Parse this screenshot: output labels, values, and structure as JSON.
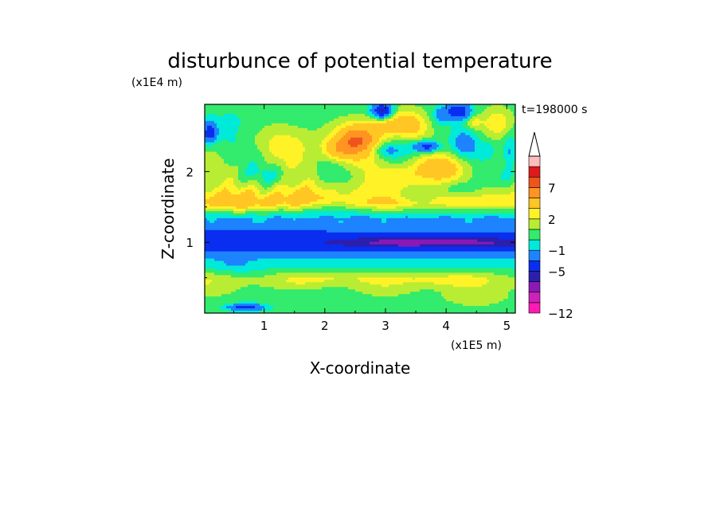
{
  "chart_data": {
    "type": "heatmap",
    "title": "disturbunce of potential temperature",
    "xlabel": "X-coordinate",
    "ylabel": "Z-coordinate",
    "x_unit": "(x1E5 m)",
    "y_unit": "(x1E4 m)",
    "time_label": "t=198000 s",
    "xlim": [
      0.02,
      5.14
    ],
    "ylim": [
      0.0,
      2.95
    ],
    "x_ticks": [
      1,
      2,
      3,
      4,
      5
    ],
    "y_ticks": [
      1,
      2
    ],
    "x_tick_labels": [
      "1",
      "2",
      "3",
      "4",
      "5"
    ],
    "y_tick_labels": [
      "1",
      "2"
    ],
    "colorbar": {
      "levels": [
        -12,
        -10,
        -8,
        -6,
        -5,
        -3,
        -1,
        0,
        1,
        2,
        3,
        5,
        7,
        9,
        11
      ],
      "labels": [
        "-12",
        "-5",
        "-1",
        "2",
        "7"
      ],
      "label_values": [
        -12,
        -5,
        -1,
        2,
        7
      ],
      "colors": [
        "#ff1ab4",
        "#cc22b8",
        "#8a19b5",
        "#2b1fae",
        "#0a2ef0",
        "#1d83ff",
        "#00ead9",
        "#33eb6c",
        "#b8ed34",
        "#fff227",
        "#ffc624",
        "#ff9422",
        "#f0541d",
        "#de1a1a",
        "#ffbcbc"
      ],
      "extend": "max"
    },
    "field": {
      "layers": [
        {
          "z": 0.12,
          "value": 0.5
        },
        {
          "z": 0.45,
          "value": 1.6
        },
        {
          "z": 0.7,
          "value": -0.3
        },
        {
          "z": 1.0,
          "value": -4.7
        },
        {
          "z": 1.3,
          "value": -1.3
        },
        {
          "z": 1.6,
          "value": 2.6
        },
        {
          "z": 2.0,
          "value": 1.0
        },
        {
          "z": 2.6,
          "value": 0.5
        }
      ],
      "features": [
        {
          "x": 3.3,
          "z": 0.99,
          "rx": 1.0,
          "rz": 0.09,
          "amp": -1.8
        },
        {
          "x": 4.6,
          "z": 0.99,
          "rx": 0.7,
          "rz": 0.08,
          "amp": -1.2
        },
        {
          "x": 0.9,
          "z": 1.12,
          "rx": 0.8,
          "rz": 0.08,
          "amp": -0.8
        },
        {
          "x": 2.55,
          "z": 2.45,
          "rx": 0.35,
          "rz": 0.22,
          "amp": 6.0
        },
        {
          "x": 2.2,
          "z": 2.3,
          "rx": 0.25,
          "rz": 0.15,
          "amp": 2.5
        },
        {
          "x": 3.05,
          "z": 2.7,
          "rx": 0.3,
          "rz": 0.2,
          "amp": 3.5
        },
        {
          "x": 3.45,
          "z": 2.65,
          "rx": 0.25,
          "rz": 0.2,
          "amp": 2.8
        },
        {
          "x": 3.9,
          "z": 2.05,
          "rx": 0.5,
          "rz": 0.18,
          "amp": 2.5
        },
        {
          "x": 3.3,
          "z": 1.95,
          "rx": 0.4,
          "rz": 0.15,
          "amp": 2.0
        },
        {
          "x": 0.6,
          "z": 1.55,
          "rx": 0.8,
          "rz": 0.14,
          "amp": 1.6
        },
        {
          "x": 1.6,
          "z": 1.62,
          "rx": 0.35,
          "rz": 0.14,
          "amp": 1.2
        },
        {
          "x": 3.0,
          "z": 1.55,
          "rx": 0.5,
          "rz": 0.08,
          "amp": 0.9
        },
        {
          "x": 4.8,
          "z": 1.55,
          "rx": 0.3,
          "rz": 0.1,
          "amp": 0.6
        },
        {
          "x": 4.2,
          "z": 1.75,
          "rx": 0.35,
          "rz": 0.12,
          "amp": -2.2
        },
        {
          "x": 3.5,
          "z": 1.65,
          "rx": 0.3,
          "rz": 0.1,
          "amp": -1.2
        },
        {
          "x": 2.0,
          "z": 1.5,
          "rx": 0.4,
          "rz": 0.1,
          "amp": -1.0
        },
        {
          "x": 4.3,
          "z": 2.4,
          "rx": 0.2,
          "rz": 0.18,
          "amp": -2.2
        },
        {
          "x": 3.0,
          "z": 2.3,
          "rx": 0.25,
          "rz": 0.1,
          "amp": -2.0
        },
        {
          "x": 2.95,
          "z": 2.85,
          "rx": 0.18,
          "rz": 0.12,
          "amp": -7.5
        },
        {
          "x": 3.5,
          "z": 2.35,
          "rx": 0.25,
          "rz": 0.12,
          "amp": -1.2
        },
        {
          "x": 5.0,
          "z": 1.9,
          "rx": 0.2,
          "rz": 0.2,
          "amp": -1.5
        },
        {
          "x": 4.85,
          "z": 2.7,
          "rx": 0.25,
          "rz": 0.2,
          "amp": 2.2
        },
        {
          "x": 5.05,
          "z": 2.25,
          "rx": 0.12,
          "rz": 0.25,
          "amp": -2.5
        },
        {
          "x": 4.2,
          "z": 2.85,
          "rx": 0.2,
          "rz": 0.12,
          "amp": -5.5
        },
        {
          "x": 3.9,
          "z": 2.8,
          "rx": 0.12,
          "rz": 0.12,
          "amp": -2.0
        },
        {
          "x": 3.7,
          "z": 2.35,
          "rx": 0.2,
          "rz": 0.08,
          "amp": -4.5
        },
        {
          "x": 4.45,
          "z": 2.7,
          "rx": 0.15,
          "rz": 0.1,
          "amp": 1.8
        },
        {
          "x": 4.7,
          "z": 2.3,
          "rx": 0.2,
          "rz": 0.15,
          "amp": -1.5
        },
        {
          "x": 1.5,
          "z": 2.4,
          "rx": 0.8,
          "rz": 0.25,
          "amp": 1.5
        },
        {
          "x": 0.35,
          "z": 2.3,
          "rx": 0.3,
          "rz": 0.35,
          "amp": -0.8
        },
        {
          "x": 0.5,
          "z": 2.75,
          "rx": 0.5,
          "rz": 0.2,
          "amp": -0.4
        },
        {
          "x": 0.1,
          "z": 2.55,
          "rx": 0.12,
          "rz": 0.15,
          "amp": -5.0
        },
        {
          "x": 1.1,
          "z": 1.95,
          "rx": 0.5,
          "rz": 0.12,
          "amp": -0.8
        },
        {
          "x": 3.9,
          "z": 0.47,
          "rx": 0.6,
          "rz": 0.09,
          "amp": 1.2
        },
        {
          "x": 2.2,
          "z": 0.5,
          "rx": 0.6,
          "rz": 0.09,
          "amp": 0.9
        },
        {
          "x": 4.5,
          "z": 0.2,
          "rx": 0.5,
          "rz": 0.1,
          "amp": 1.1
        },
        {
          "x": 0.7,
          "z": 0.08,
          "rx": 0.3,
          "rz": 0.05,
          "amp": -4.5
        },
        {
          "x": 1.5,
          "z": 0.28,
          "rx": 0.6,
          "rz": 0.1,
          "amp": -0.9
        },
        {
          "x": 0.5,
          "z": 0.7,
          "rx": 0.4,
          "rz": 0.15,
          "amp": -0.8
        }
      ]
    }
  }
}
